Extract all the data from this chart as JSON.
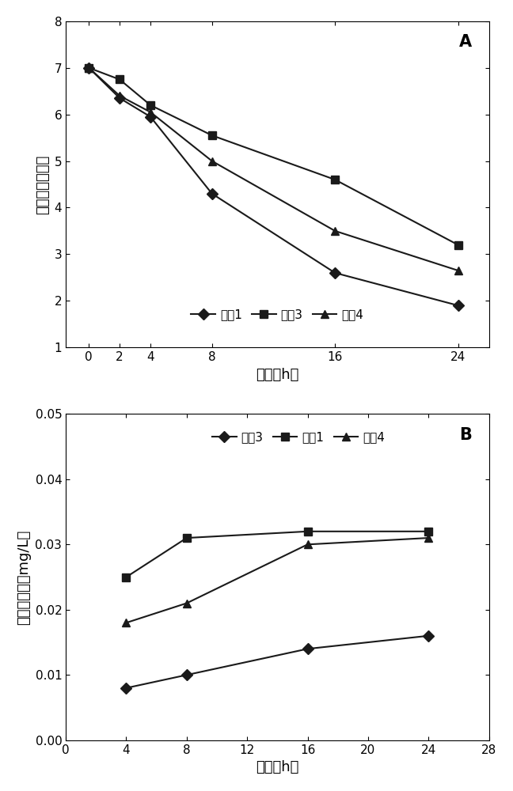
{
  "panel_A": {
    "label": "A",
    "xlabel": "时间（h）",
    "ylabel": "活细菌的对数值",
    "xlim": [
      -1.5,
      26
    ],
    "ylim": [
      1,
      8
    ],
    "xticks": [
      0,
      2,
      4,
      8,
      16,
      24
    ],
    "yticks": [
      1,
      2,
      3,
      4,
      5,
      6,
      7,
      8
    ],
    "series": [
      {
        "label": "材料1",
        "x": [
          0,
          2,
          4,
          8,
          16,
          24
        ],
        "y": [
          7.0,
          6.35,
          5.95,
          4.3,
          2.6,
          1.9
        ],
        "marker": "D",
        "color": "#1a1a1a"
      },
      {
        "label": "材料3",
        "x": [
          0,
          2,
          4,
          8,
          16,
          24
        ],
        "y": [
          7.0,
          6.75,
          6.2,
          5.55,
          4.6,
          3.2
        ],
        "marker": "s",
        "color": "#1a1a1a"
      },
      {
        "label": "材料4",
        "x": [
          0,
          2,
          4,
          8,
          16,
          24
        ],
        "y": [
          7.0,
          6.4,
          6.05,
          5.0,
          3.5,
          2.65
        ],
        "marker": "^",
        "color": "#1a1a1a"
      }
    ]
  },
  "panel_B": {
    "label": "B",
    "xlabel": "时间（h）",
    "ylabel": "銀离子浓度（mg/L）",
    "xlim": [
      0,
      28
    ],
    "ylim": [
      0,
      0.05
    ],
    "xticks": [
      0,
      4,
      8,
      12,
      16,
      20,
      24,
      28
    ],
    "yticks": [
      0,
      0.01,
      0.02,
      0.03,
      0.04,
      0.05
    ],
    "series": [
      {
        "label": "材料3",
        "x": [
          4,
          8,
          16,
          24
        ],
        "y": [
          0.008,
          0.01,
          0.014,
          0.016
        ],
        "marker": "D",
        "color": "#1a1a1a"
      },
      {
        "label": "材料1",
        "x": [
          4,
          8,
          16,
          24
        ],
        "y": [
          0.025,
          0.031,
          0.032,
          0.032
        ],
        "marker": "s",
        "color": "#1a1a1a"
      },
      {
        "label": "材料4",
        "x": [
          4,
          8,
          16,
          24
        ],
        "y": [
          0.018,
          0.021,
          0.03,
          0.031
        ],
        "marker": "^",
        "color": "#1a1a1a"
      }
    ]
  },
  "background_color": "#ffffff",
  "line_color": "#1a1a1a",
  "marker_size": 7,
  "line_width": 1.5
}
